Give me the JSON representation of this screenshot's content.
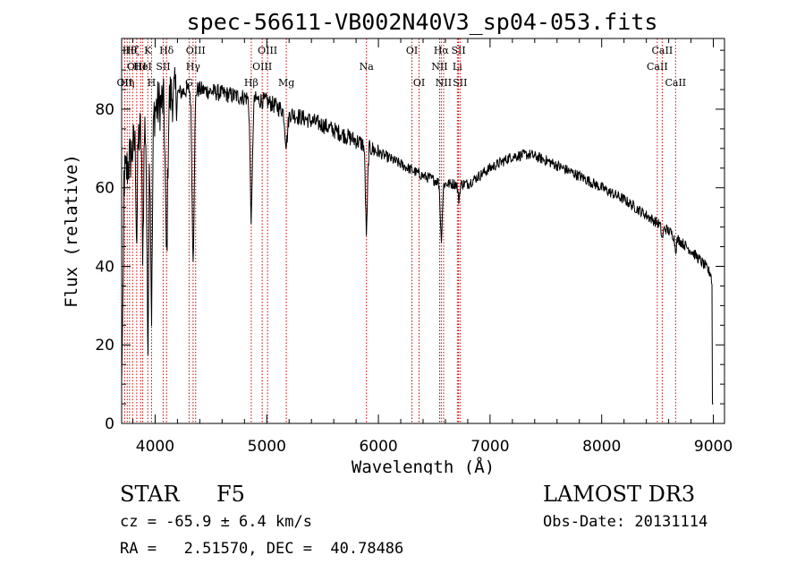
{
  "chart_data": {
    "type": "line",
    "title": "spec-56611-VB002N40V3_sp04-053.fits",
    "xlabel": "Wavelength (Å)",
    "ylabel": "Flux (relative)",
    "xlim": [
      3700,
      9100
    ],
    "ylim": [
      0,
      98
    ],
    "xticks": [
      4000,
      5000,
      6000,
      7000,
      8000,
      9000
    ],
    "yticks": [
      0,
      20,
      40,
      60,
      80
    ],
    "line_color": "#000000",
    "marker_color": "#cc0000",
    "continuum_anchors": [
      [
        3700,
        60
      ],
      [
        3800,
        70
      ],
      [
        3900,
        76
      ],
      [
        4000,
        80
      ],
      [
        4100,
        83
      ],
      [
        4300,
        85
      ],
      [
        4400,
        85
      ],
      [
        4600,
        84
      ],
      [
        4800,
        83
      ],
      [
        5000,
        82
      ],
      [
        5200,
        79
      ],
      [
        5500,
        76
      ],
      [
        5800,
        72
      ],
      [
        6000,
        69
      ],
      [
        6200,
        66
      ],
      [
        6400,
        63
      ],
      [
        6600,
        61
      ],
      [
        6800,
        61
      ],
      [
        7000,
        65
      ],
      [
        7200,
        68
      ],
      [
        7350,
        68.5
      ],
      [
        7500,
        67
      ],
      [
        7800,
        63
      ],
      [
        8000,
        60
      ],
      [
        8200,
        57
      ],
      [
        8400,
        53
      ],
      [
        8600,
        49
      ],
      [
        8800,
        44
      ],
      [
        8900,
        41
      ],
      [
        8980,
        38
      ],
      [
        9000,
        30
      ]
    ],
    "absorption_features": [
      {
        "x": 3934,
        "depth": 55,
        "width": 8
      },
      {
        "x": 3968,
        "depth": 50,
        "width": 8
      },
      {
        "x": 3889,
        "depth": 30,
        "width": 7
      },
      {
        "x": 3835,
        "depth": 25,
        "width": 6
      },
      {
        "x": 4102,
        "depth": 40,
        "width": 10
      },
      {
        "x": 4340,
        "depth": 42,
        "width": 10
      },
      {
        "x": 4861,
        "depth": 30,
        "width": 10
      },
      {
        "x": 5175,
        "depth": 8,
        "width": 12
      },
      {
        "x": 5893,
        "depth": 22,
        "width": 9
      },
      {
        "x": 6563,
        "depth": 14,
        "width": 9
      },
      {
        "x": 6720,
        "depth": 4,
        "width": 8
      },
      {
        "x": 8542,
        "depth": 3,
        "width": 8
      },
      {
        "x": 8662,
        "depth": 3,
        "width": 8
      }
    ],
    "line_markers": [
      {
        "x": 3727,
        "label": "OII",
        "row": 2
      },
      {
        "x": 3750,
        "label": "Hη",
        "row": 2
      },
      {
        "x": 3771,
        "label": "Hθ",
        "row": 0
      },
      {
        "x": 3798,
        "label": "Hζ",
        "row": 0
      },
      {
        "x": 3835,
        "label": "OIII",
        "row": 1
      },
      {
        "x": 3870,
        "label": "He",
        "row": 1
      },
      {
        "x": 3889,
        "label": "HeI",
        "row": 1
      },
      {
        "x": 3934,
        "label": "K",
        "row": 0
      },
      {
        "x": 3968,
        "label": "H",
        "row": 2
      },
      {
        "x": 4072,
        "label": "SII",
        "row": 1
      },
      {
        "x": 4102,
        "label": "Hδ",
        "row": 0
      },
      {
        "x": 4304,
        "label": "G",
        "row": 2
      },
      {
        "x": 4340,
        "label": "Hγ",
        "row": 1
      },
      {
        "x": 4363,
        "label": "OIII",
        "row": 0
      },
      {
        "x": 4861,
        "label": "Hβ",
        "row": 2
      },
      {
        "x": 4959,
        "label": "OIII",
        "row": 1
      },
      {
        "x": 5007,
        "label": "OIII",
        "row": 0
      },
      {
        "x": 5175,
        "label": "Mg",
        "row": 2
      },
      {
        "x": 5893,
        "label": "Na",
        "row": 1
      },
      {
        "x": 6300,
        "label": "OI",
        "row": 0
      },
      {
        "x": 6364,
        "label": "OI",
        "row": 2
      },
      {
        "x": 6548,
        "label": "NII",
        "row": 1
      },
      {
        "x": 6563,
        "label": "Hα",
        "row": 0
      },
      {
        "x": 6584,
        "label": "NII",
        "row": 2
      },
      {
        "x": 6707,
        "label": "Li",
        "row": 1
      },
      {
        "x": 6717,
        "label": "SII",
        "row": 0
      },
      {
        "x": 6731,
        "label": "SII",
        "row": 2
      },
      {
        "x": 8498,
        "label": "CaII",
        "row": 1
      },
      {
        "x": 8542,
        "label": "CaII",
        "row": 0
      },
      {
        "x": 8662,
        "label": "CaII",
        "row": 2
      }
    ]
  },
  "info": {
    "object_class": "STAR",
    "subclass": "F5",
    "survey": "LAMOST DR3",
    "cz": "cz = -65.9 ± 6.4 km/s",
    "obs_date": "Obs-Date: 20131114",
    "coords": "RA =   2.51570, DEC =  40.78486"
  }
}
